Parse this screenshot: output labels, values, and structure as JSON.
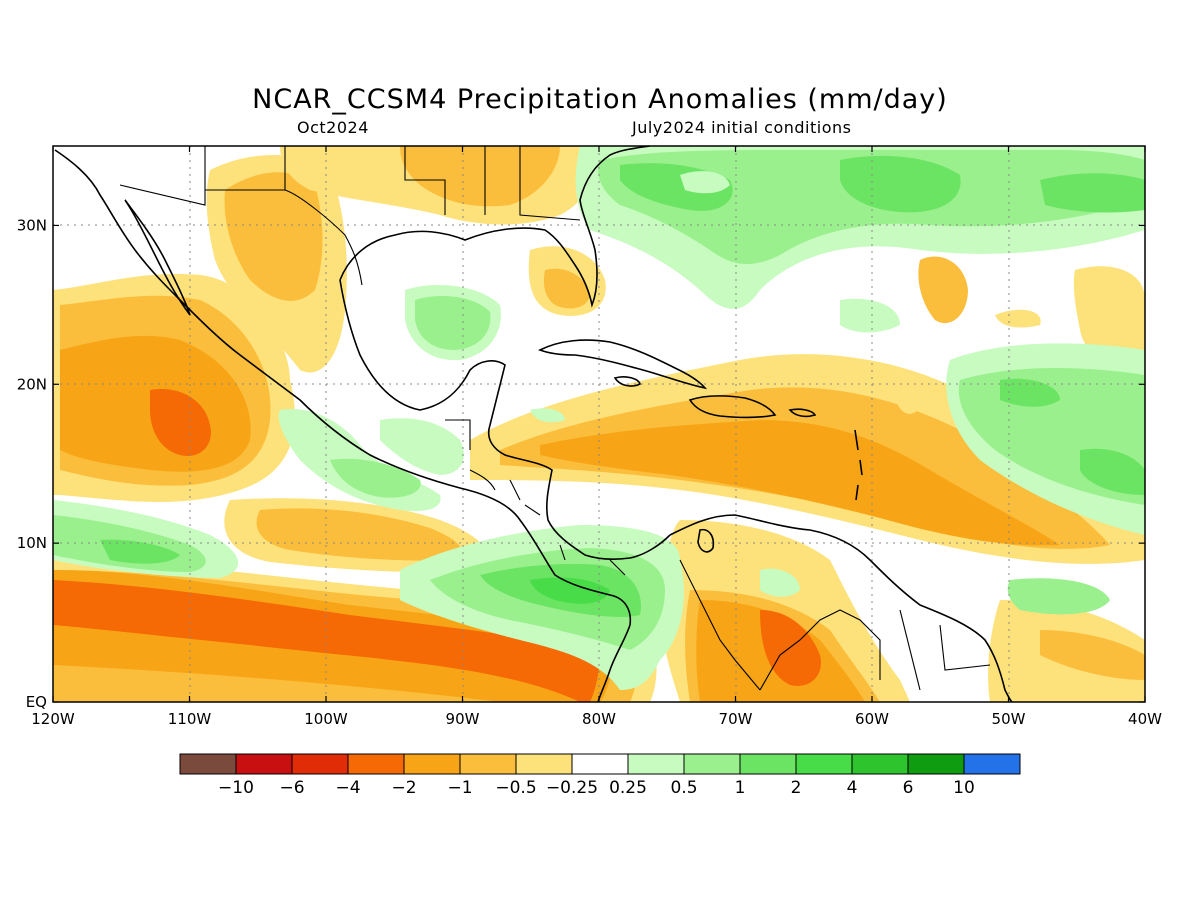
{
  "header": {
    "title": "NCAR_CCSM4 Precipitation Anomalies (mm/day)",
    "lead": "Oct2024",
    "init": "July2024 initial conditions"
  },
  "map": {
    "lon_range": [
      -120,
      -40
    ],
    "lat_range": [
      0,
      35
    ],
    "lon_ticks": [
      {
        "value": -120,
        "label": "120W"
      },
      {
        "value": -110,
        "label": "110W"
      },
      {
        "value": -100,
        "label": "100W"
      },
      {
        "value": -90,
        "label": "90W"
      },
      {
        "value": -80,
        "label": "80W"
      },
      {
        "value": -70,
        "label": "70W"
      },
      {
        "value": -60,
        "label": "60W"
      },
      {
        "value": -50,
        "label": "50W"
      },
      {
        "value": -40,
        "label": "40W"
      }
    ],
    "lat_ticks": [
      {
        "value": 0,
        "label": "EQ"
      },
      {
        "value": 10,
        "label": "10N"
      },
      {
        "value": 20,
        "label": "20N"
      },
      {
        "value": 30,
        "label": "30N"
      }
    ],
    "gridlines": "dotted"
  },
  "colorbar": {
    "colors": [
      "#7a4a3c",
      "#c81010",
      "#e02d08",
      "#f56a05",
      "#f7a516",
      "#fbbe3c",
      "#fde27c",
      "#ffffff",
      "#c7fbc0",
      "#9bf08e",
      "#6ce463",
      "#48dc48",
      "#2ec42e",
      "#109c10",
      "#2472e8"
    ],
    "labels": [
      "−10",
      "−6",
      "−4",
      "−2",
      "−1",
      "−0.5",
      "−0.25",
      "0.25",
      "0.5",
      "1",
      "2",
      "4",
      "6",
      "10"
    ]
  }
}
